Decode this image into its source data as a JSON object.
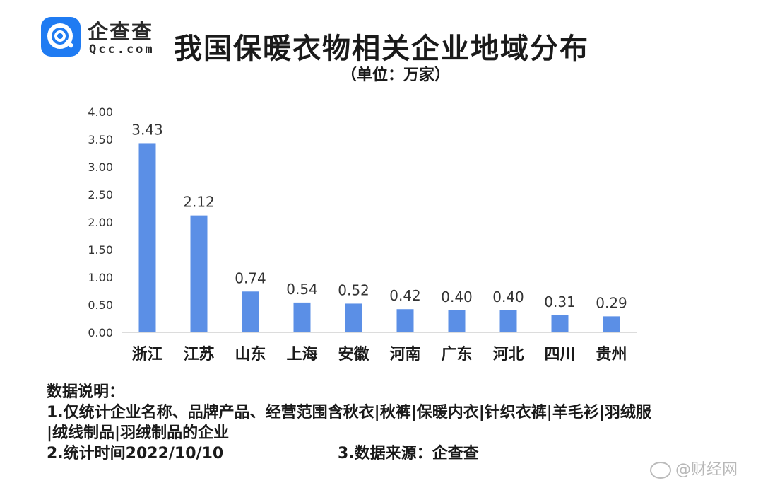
{
  "logo": {
    "name_cn": "企查查",
    "name_en": "Qcc.com",
    "brand_color": "#1f7bf2"
  },
  "title": "我国保暖衣物相关企业地域分布",
  "unit": "（单位：万家）",
  "chart_data": {
    "type": "bar",
    "title": "我国保暖衣物相关企业地域分布",
    "subtitle": "（单位：万家）",
    "categories": [
      "浙江",
      "江苏",
      "山东",
      "上海",
      "安徽",
      "河南",
      "广东",
      "河北",
      "四川",
      "贵州"
    ],
    "values": [
      3.43,
      2.12,
      0.74,
      0.54,
      0.52,
      0.42,
      0.4,
      0.4,
      0.31,
      0.29
    ],
    "value_labels": [
      "3.43",
      "2.12",
      "0.74",
      "0.54",
      "0.52",
      "0.42",
      "0.40",
      "0.40",
      "0.31",
      "0.29"
    ],
    "yticks": [
      "0.00",
      "0.50",
      "1.00",
      "1.50",
      "2.00",
      "2.50",
      "3.00",
      "3.50",
      "4.00"
    ],
    "ylim": [
      0,
      4
    ],
    "grid": false,
    "bar_color": "#5b8fe6"
  },
  "notes": {
    "heading": "数据说明：",
    "line1": "1.仅统计企业名称、品牌产品、经营范围含秋衣|秋裤|保暖内衣|针织衣裤|羊毛衫|羽绒服",
    "line1_cont": "|绒线制品|羽绒制品的企业",
    "line2": "2.统计时间2022/10/10",
    "line3": "3.数据来源：企查查"
  },
  "watermark": "@财经网"
}
